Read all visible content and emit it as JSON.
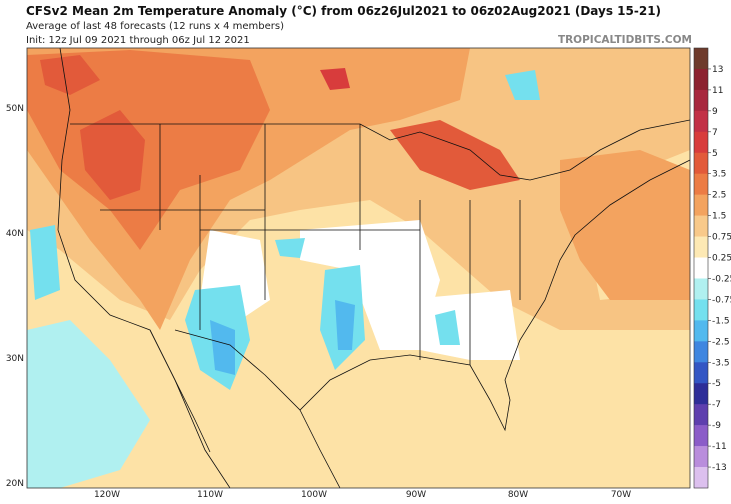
{
  "header": {
    "title": "CFSv2 Mean 2m Temperature Anomaly (°C) from 06z26Jul2021 to 06z02Aug2021 (Days 15-21)",
    "subtitle": "Average of last 48 forecasts (12 runs x 4 members)",
    "init": "Init: 12z Jul 09 2021 through 06z Jul 12 2021",
    "brand": "TROPICALTIDBITS.COM"
  },
  "map": {
    "lat_labels": [
      "50N",
      "40N",
      "30N",
      "20N"
    ],
    "lon_labels": [
      "120W",
      "110W",
      "100W",
      "90W",
      "80W",
      "70W"
    ]
  },
  "legend": {
    "levels": [
      13,
      11,
      9,
      7,
      5,
      3.5,
      2.5,
      1.5,
      0.75,
      0.25,
      -0.25,
      -0.75,
      -1.5,
      -2.5,
      -3.5,
      -5,
      -7,
      -9,
      -11,
      -13
    ],
    "colors": [
      "#6e3b2c",
      "#8c2230",
      "#a8283e",
      "#c23046",
      "#d83c3c",
      "#e25a3a",
      "#ec7c45",
      "#f3a35f",
      "#f8c98a",
      "#fde9b4",
      "#ffffff",
      "#b0f0f0",
      "#74e0ee",
      "#52b9ee",
      "#3f86e0",
      "#3356c4",
      "#2e2e98",
      "#5e3fae",
      "#8b5cc8",
      "#b98ddc",
      "#dcc0ee"
    ]
  }
}
